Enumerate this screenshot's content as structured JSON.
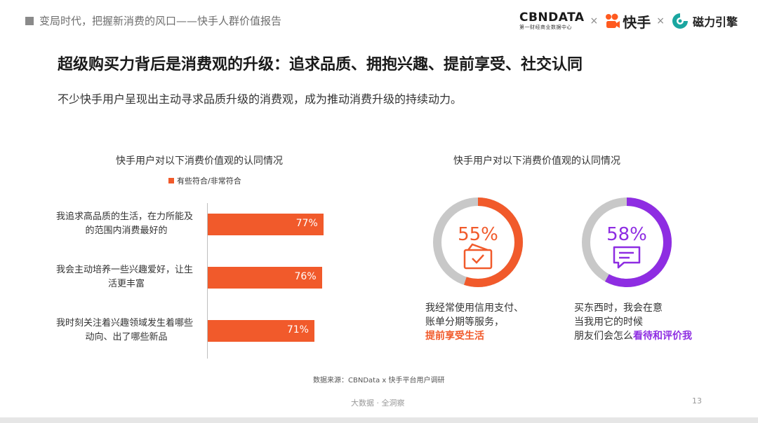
{
  "header": {
    "tag_text": "变局时代，把握新消费的风口——快手人群价值报告",
    "brand_cbn": "CBNDATA",
    "brand_cbn_sub": "第一财经商业数据中心",
    "separator": "×",
    "brand_kuaishou": "快手",
    "brand_cili": "磁力引擎"
  },
  "title": "超级购买力背后是消费观的升级：追求品质、拥抱兴趣、提前享受、社交认同",
  "subtitle": "不少快手用户呈现出主动寻求品质升级的消费观，成为推动消费升级的持续动力。",
  "left_chart": {
    "title": "快手用户对以下消费价值观的认同情况",
    "legend": "有些符合/非常符合",
    "color": "#f15a2b"
  },
  "right_chart": {
    "title": "快手用户对以下消费价值观的认同情况",
    "track_color": "#c8c8c8"
  },
  "chart_data": [
    {
      "type": "bar",
      "title": "快手用户对以下消费价值观的认同情况",
      "categories": [
        "我追求高品质的生活，在力所能及的范围内消费最好的",
        "我会主动培养一些兴趣爱好，让生活更丰富",
        "我时刻关注着兴趣领域发生着哪些动向、出了哪些新品"
      ],
      "category_lines": [
        [
          "我追求高品质的生活，在力所能及",
          "的范围内消费最好的"
        ],
        [
          "我会主动培养一些兴趣爱好，让生",
          "活更丰富"
        ],
        [
          "我时刻关注着兴趣领域发生着哪些",
          "动向、出了哪些新品"
        ]
      ],
      "series": [
        {
          "name": "有些符合/非常符合",
          "values": [
            77,
            76,
            71
          ]
        }
      ],
      "value_labels": [
        "77%",
        "76%",
        "71%"
      ],
      "ylim": [
        0,
        100
      ],
      "legend": "top"
    },
    {
      "type": "pie",
      "title": "快手用户对以下消费价值观的认同情况",
      "slices": [
        {
          "value": 55,
          "label": "55%",
          "color": "#f15a2b",
          "icon": "credit-card-check-icon",
          "caption_lines": [
            "我经常使用信用支付、",
            "账单分期等服务，"
          ],
          "highlight": "提前享受生活"
        },
        {
          "value": 58,
          "label": "58%",
          "color": "#8e2de2",
          "icon": "chat-bubble-icon",
          "caption_lines": [
            "买东西时，我会在意",
            "当我用它的时候"
          ],
          "caption_tail": "朋友们会怎么",
          "highlight": "看待和评价我"
        }
      ]
    }
  ],
  "source": "数据来源：CBNData x 快手平台用户调研",
  "footer": "大数据 · 全洞察",
  "page_number": "13"
}
